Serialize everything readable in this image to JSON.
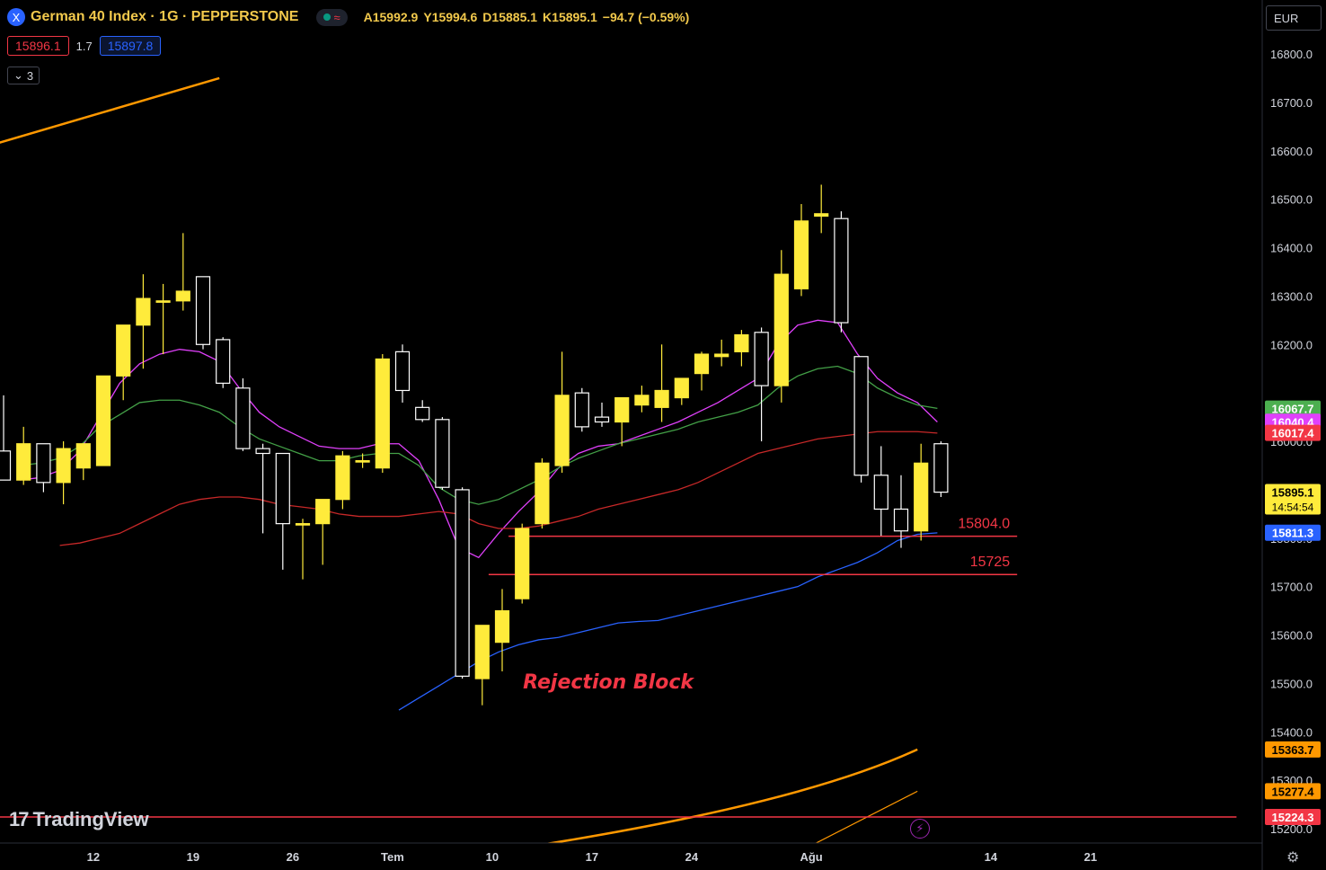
{
  "header": {
    "symbol_icon": "X",
    "title": "German 40 Index · 1G · PEPPERSTONE",
    "status_icon": "≈",
    "open_label": "A",
    "open": "15992.9",
    "high_label": "Y",
    "high": "15994.6",
    "low_label": "D",
    "low": "15885.1",
    "close_label": "K",
    "close": "15895.1",
    "change": "−94.7 (−0.59%)"
  },
  "quote": {
    "bid": "15896.1",
    "spread": "1.7",
    "ask": "15897.8"
  },
  "indicators_collapse": {
    "icon": "chevron-down-icon",
    "count": "3"
  },
  "currency": "EUR",
  "watermark": "TradingView",
  "colors": {
    "background": "#000000",
    "bull": "#ffeb3b",
    "bear": "#ffffff",
    "ema_fast": "#e040fb",
    "ema_mid": "#4caf50",
    "ema_slow": "#f23645",
    "ema_long": "#2962ff",
    "trend": "#ff9800",
    "annotation": "#f23645"
  },
  "chart_data": {
    "type": "candlestick",
    "y_axis": {
      "min": 15150,
      "max": 16860,
      "ticks": [
        16800,
        16700,
        16600,
        16500,
        16400,
        16300,
        16200,
        16000,
        15800,
        15700,
        15600,
        15500,
        15400,
        15300,
        15200
      ],
      "tick_labels": [
        "16800.0",
        "16700.0",
        "16600.0",
        "16500.0",
        "16400.0",
        "16300.0",
        "16200.0",
        "16000.0",
        "15800.0",
        "15700.0",
        "15600.0",
        "15500.0",
        "15400.0",
        "15300.0",
        "15200.0"
      ]
    },
    "x_axis": {
      "labels": [
        {
          "text": "12",
          "index": 4.5
        },
        {
          "text": "19",
          "index": 9.5
        },
        {
          "text": "26",
          "index": 14.5
        },
        {
          "text": "Tem",
          "index": 19.5
        },
        {
          "text": "10",
          "index": 24.5
        },
        {
          "text": "17",
          "index": 29.5
        },
        {
          "text": "24",
          "index": 34.5
        },
        {
          "text": "Ağu",
          "index": 40.5
        },
        {
          "text": "14",
          "index": 49.5
        },
        {
          "text": "21",
          "index": 54.5
        }
      ]
    },
    "candles": [
      {
        "o": 15980,
        "h": 16095,
        "l": 15920,
        "c": 15920
      },
      {
        "o": 15920,
        "h": 16030,
        "l": 15910,
        "c": 15995
      },
      {
        "o": 15995,
        "h": 15995,
        "l": 15895,
        "c": 15915
      },
      {
        "o": 15915,
        "h": 16000,
        "l": 15870,
        "c": 15985
      },
      {
        "o": 15945,
        "h": 15995,
        "l": 15920,
        "c": 15995
      },
      {
        "o": 15950,
        "h": 16130,
        "l": 15950,
        "c": 16135
      },
      {
        "o": 16135,
        "h": 16240,
        "l": 16085,
        "c": 16240
      },
      {
        "o": 16240,
        "h": 16345,
        "l": 16150,
        "c": 16295
      },
      {
        "o": 16290,
        "h": 16325,
        "l": 16180,
        "c": 16290
      },
      {
        "o": 16290,
        "h": 16430,
        "l": 16270,
        "c": 16310
      },
      {
        "o": 16340,
        "h": 16340,
        "l": 16190,
        "c": 16200
      },
      {
        "o": 16210,
        "h": 16215,
        "l": 16110,
        "c": 16120
      },
      {
        "o": 16110,
        "h": 16130,
        "l": 15980,
        "c": 15985
      },
      {
        "o": 15985,
        "h": 15995,
        "l": 15810,
        "c": 15975
      },
      {
        "o": 15975,
        "h": 15975,
        "l": 15735,
        "c": 15830
      },
      {
        "o": 15830,
        "h": 15840,
        "l": 15715,
        "c": 15830
      },
      {
        "o": 15830,
        "h": 15880,
        "l": 15745,
        "c": 15880
      },
      {
        "o": 15880,
        "h": 15980,
        "l": 15860,
        "c": 15970
      },
      {
        "o": 15960,
        "h": 15975,
        "l": 15945,
        "c": 15960
      },
      {
        "o": 15945,
        "h": 16180,
        "l": 15935,
        "c": 16170
      },
      {
        "o": 16185,
        "h": 16200,
        "l": 16080,
        "c": 16105
      },
      {
        "o": 16070,
        "h": 16085,
        "l": 16040,
        "c": 16045
      },
      {
        "o": 16045,
        "h": 16050,
        "l": 15900,
        "c": 15905
      },
      {
        "o": 15900,
        "h": 15905,
        "l": 15510,
        "c": 15515
      },
      {
        "o": 15510,
        "h": 15620,
        "l": 15455,
        "c": 15620
      },
      {
        "o": 15585,
        "h": 15695,
        "l": 15525,
        "c": 15650
      },
      {
        "o": 15675,
        "h": 15830,
        "l": 15665,
        "c": 15820
      },
      {
        "o": 15830,
        "h": 15965,
        "l": 15820,
        "c": 15955
      },
      {
        "o": 15950,
        "h": 16185,
        "l": 15935,
        "c": 16095
      },
      {
        "o": 16100,
        "h": 16110,
        "l": 16020,
        "c": 16030
      },
      {
        "o": 16050,
        "h": 16080,
        "l": 16030,
        "c": 16040
      },
      {
        "o": 16040,
        "h": 16090,
        "l": 15990,
        "c": 16090
      },
      {
        "o": 16075,
        "h": 16115,
        "l": 16060,
        "c": 16095
      },
      {
        "o": 16070,
        "h": 16200,
        "l": 16040,
        "c": 16105
      },
      {
        "o": 16090,
        "h": 16120,
        "l": 16075,
        "c": 16130
      },
      {
        "o": 16140,
        "h": 16185,
        "l": 16105,
        "c": 16180
      },
      {
        "o": 16175,
        "h": 16210,
        "l": 16155,
        "c": 16180
      },
      {
        "o": 16185,
        "h": 16230,
        "l": 16155,
        "c": 16220
      },
      {
        "o": 16225,
        "h": 16235,
        "l": 16000,
        "c": 16115
      },
      {
        "o": 16115,
        "h": 16395,
        "l": 16080,
        "c": 16345
      },
      {
        "o": 16315,
        "h": 16490,
        "l": 16300,
        "c": 16455
      },
      {
        "o": 16465,
        "h": 16530,
        "l": 16430,
        "c": 16470
      },
      {
        "o": 16460,
        "h": 16475,
        "l": 16225,
        "c": 16245
      },
      {
        "o": 16175,
        "h": 16175,
        "l": 15915,
        "c": 15930
      },
      {
        "o": 15930,
        "h": 15990,
        "l": 15805,
        "c": 15860
      },
      {
        "o": 15860,
        "h": 15930,
        "l": 15780,
        "c": 15815
      },
      {
        "o": 15815,
        "h": 15995,
        "l": 15795,
        "c": 15955
      },
      {
        "o": 15995,
        "h": 16000,
        "l": 15885,
        "c": 15895
      }
    ],
    "series": [
      {
        "name": "",
        "color": "#e040fb",
        "last": "16040.4",
        "values": [
          15920,
          15925,
          15940,
          15980,
          16050,
          16120,
          16160,
          16180,
          16190,
          16185,
          16165,
          16110,
          16060,
          16030,
          16010,
          15990,
          15985,
          15985,
          15995,
          15995,
          15960,
          15880,
          15780,
          15760,
          15810,
          15855,
          15895,
          15945,
          15975,
          15990,
          15995,
          16010,
          16025,
          16040,
          16060,
          16080,
          16105,
          16130,
          16200,
          16240,
          16250,
          16245,
          16180,
          16130,
          16100,
          16080,
          16040
        ]
      },
      {
        "name": "",
        "color": "#43a047",
        "last": "16067.7",
        "values": [
          15950,
          15955,
          15965,
          15990,
          16030,
          16055,
          16080,
          16085,
          16085,
          16075,
          16060,
          16030,
          16005,
          15990,
          15975,
          15960,
          15960,
          15970,
          15975,
          15975,
          15950,
          15905,
          15880,
          15870,
          15880,
          15900,
          15920,
          15945,
          15965,
          15980,
          15995,
          16005,
          16015,
          16025,
          16040,
          16050,
          16060,
          16075,
          16110,
          16135,
          16150,
          16155,
          16140,
          16110,
          16090,
          16075,
          16068
        ]
      },
      {
        "name": "",
        "color": "#c62828",
        "last": "16017.4",
        "values": [
          15785,
          15790,
          15800,
          15810,
          15830,
          15850,
          15870,
          15880,
          15885,
          15885,
          15880,
          15870,
          15865,
          15860,
          15850,
          15845,
          15845,
          15845,
          15850,
          15855,
          15850,
          15830,
          15820,
          15820,
          15825,
          15835,
          15845,
          15860,
          15870,
          15880,
          15890,
          15900,
          15915,
          15935,
          15955,
          15975,
          15985,
          15995,
          16005,
          16010,
          16015,
          16020,
          16020,
          16020,
          16017
        ]
      },
      {
        "name": "",
        "color": "#2962ff",
        "last": "15811.3",
        "values": [
          15445,
          15470,
          15495,
          15520,
          15545,
          15565,
          15580,
          15590,
          15595,
          15605,
          15615,
          15625,
          15628,
          15630,
          15640,
          15650,
          15660,
          15670,
          15680,
          15690,
          15700,
          15720,
          15735,
          15750,
          15770,
          15795,
          15808,
          15811
        ]
      }
    ],
    "trend_lines": [
      {
        "color": "#ff9800",
        "from": {
          "i": -1,
          "v": 16605
        },
        "to": {
          "i": 11,
          "v": 16750
        }
      },
      {
        "color": "#ff9800",
        "from": {
          "i": 21,
          "v": 15130
        },
        "to": {
          "i": 46,
          "v": 15363.7
        },
        "curved": true
      },
      {
        "color": "#ff9800",
        "from": {
          "i": 39,
          "v": 15130
        },
        "to": {
          "i": 46,
          "v": 15277.4
        }
      }
    ],
    "horizontal_levels": [
      {
        "value": 15804.0,
        "label": "15804.0",
        "from_index": 25.5,
        "to_index": 51
      },
      {
        "value": 15725,
        "label": "15725",
        "from_index": 24.5,
        "to_index": 51
      },
      {
        "value": 15224.3,
        "label": "",
        "from_index": -1,
        "to_index": 62
      }
    ],
    "annotations": [
      {
        "text": "Rejection Block",
        "index": 30.5,
        "value": 15490
      }
    ],
    "price_labels": [
      {
        "value": 16067.7,
        "text": "16067.7",
        "color": "#4caf50"
      },
      {
        "value": 16040.4,
        "text": "16040.4",
        "color": "#e040fb"
      },
      {
        "value": 16017.4,
        "text": "16017.4",
        "color": "#f23645"
      },
      {
        "value": 15895.1,
        "text": "15895.1",
        "sub": "14:54:54",
        "color": "#ffeb3b"
      },
      {
        "value": 15811.3,
        "text": "15811.3",
        "color": "#2962ff"
      },
      {
        "value": 15363.7,
        "text": "15363.7",
        "color": "#ff9800"
      },
      {
        "value": 15277.4,
        "text": "15277.4",
        "color": "#ff9800"
      },
      {
        "value": 15224.3,
        "text": "15224.3",
        "color": "#f23645"
      }
    ]
  }
}
